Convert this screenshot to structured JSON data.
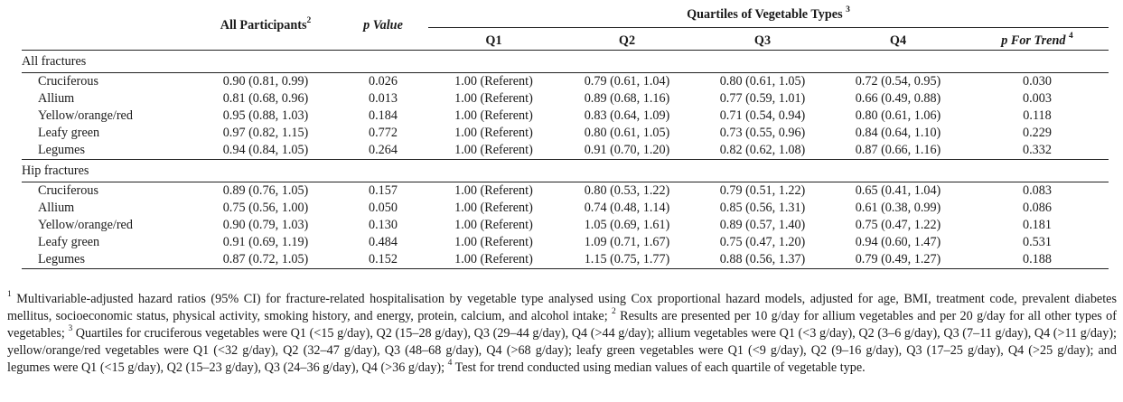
{
  "headers": {
    "all_participants": "All Participants",
    "all_participants_sup": "2",
    "p_value": "p Value",
    "quartiles": "Quartiles of Vegetable Types",
    "quartiles_sup": "3",
    "q1": "Q1",
    "q2": "Q2",
    "q3": "Q3",
    "q4": "Q4",
    "p_for_trend": "p For Trend",
    "p_for_trend_sup": "4"
  },
  "groups": [
    {
      "label": "All fractures",
      "rows": [
        {
          "name": "Cruciferous",
          "all": "0.90 (0.81, 0.99)",
          "p": "0.026",
          "q1": "1.00 (Referent)",
          "q2": "0.79 (0.61, 1.04)",
          "q3": "0.80 (0.61, 1.05)",
          "q4": "0.72 (0.54, 0.95)",
          "trend": "0.030"
        },
        {
          "name": "Allium",
          "all": "0.81 (0.68, 0.96)",
          "p": "0.013",
          "q1": "1.00 (Referent)",
          "q2": "0.89 (0.68, 1.16)",
          "q3": "0.77 (0.59, 1.01)",
          "q4": "0.66 (0.49, 0.88)",
          "trend": "0.003"
        },
        {
          "name": "Yellow/orange/red",
          "all": "0.95 (0.88, 1.03)",
          "p": "0.184",
          "q1": "1.00 (Referent)",
          "q2": "0.83 (0.64, 1.09)",
          "q3": "0.71 (0.54, 0.94)",
          "q4": "0.80 (0.61, 1.06)",
          "trend": "0.118"
        },
        {
          "name": "Leafy green",
          "all": "0.97 (0.82, 1.15)",
          "p": "0.772",
          "q1": "1.00 (Referent)",
          "q2": "0.80 (0.61, 1.05)",
          "q3": "0.73 (0.55, 0.96)",
          "q4": "0.84 (0.64, 1.10)",
          "trend": "0.229"
        },
        {
          "name": "Legumes",
          "all": "0.94 (0.84, 1.05)",
          "p": "0.264",
          "q1": "1.00 (Referent)",
          "q2": "0.91 (0.70, 1.20)",
          "q3": "0.82 (0.62, 1.08)",
          "q4": "0.87 (0.66, 1.16)",
          "trend": "0.332"
        }
      ]
    },
    {
      "label": "Hip fractures",
      "rows": [
        {
          "name": "Cruciferous",
          "all": "0.89 (0.76, 1.05)",
          "p": "0.157",
          "q1": "1.00 (Referent)",
          "q2": "0.80 (0.53, 1.22)",
          "q3": "0.79 (0.51, 1.22)",
          "q4": "0.65 (0.41, 1.04)",
          "trend": "0.083"
        },
        {
          "name": "Allium",
          "all": "0.75 (0.56, 1.00)",
          "p": "0.050",
          "q1": "1.00 (Referent)",
          "q2": "0.74 (0.48, 1.14)",
          "q3": "0.85 (0.56, 1.31)",
          "q4": "0.61 (0.38, 0.99)",
          "trend": "0.086"
        },
        {
          "name": "Yellow/orange/red",
          "all": "0.90 (0.79, 1.03)",
          "p": "0.130",
          "q1": "1.00 (Referent)",
          "q2": "1.05 (0.69, 1.61)",
          "q3": "0.89 (0.57, 1.40)",
          "q4": "0.75 (0.47, 1.22)",
          "trend": "0.181"
        },
        {
          "name": "Leafy green",
          "all": "0.91 (0.69, 1.19)",
          "p": "0.484",
          "q1": "1.00 (Referent)",
          "q2": "1.09 (0.71, 1.67)",
          "q3": "0.75 (0.47, 1.20)",
          "q4": "0.94 (0.60, 1.47)",
          "trend": "0.531"
        },
        {
          "name": "Legumes",
          "all": "0.87 (0.72, 1.05)",
          "p": "0.152",
          "q1": "1.00 (Referent)",
          "q2": "1.15 (0.75, 1.77)",
          "q3": "0.88 (0.56, 1.37)",
          "q4": "0.79 (0.49, 1.27)",
          "trend": "0.188"
        }
      ]
    }
  ],
  "footnote": {
    "sup1": "1",
    "text1": " Multivariable-adjusted hazard ratios (95% CI) for fracture-related hospitalisation by vegetable type analysed using Cox proportional hazard models, adjusted for age, BMI, treatment code, prevalent diabetes mellitus, socioeconomic status, physical activity, smoking history, and energy, protein, calcium, and alcohol intake; ",
    "sup2": "2",
    "text2": " Results are presented per 10 g/day for allium vegetables and per 20 g/day for all other types of vegetables; ",
    "sup3": "3",
    "text3": " Quartiles for cruciferous vegetables were Q1 (<15 g/day), Q2 (15–28 g/day), Q3 (29–44 g/day), Q4 (>44 g/day); allium vegetables were Q1 (<3 g/day), Q2 (3–6 g/day), Q3 (7–11 g/day), Q4 (>11 g/day); yellow/orange/red vegetables were Q1 (<32 g/day), Q2 (32–47 g/day), Q3 (48–68 g/day), Q4 (>68 g/day); leafy green vegetables were Q1 (<9 g/day), Q2 (9–16 g/day), Q3 (17–25 g/day), Q4 (>25 g/day); and legumes were Q1 (<15 g/day), Q2 (15–23 g/day), Q3 (24–36 g/day), Q4 (>36 g/day); ",
    "sup4": "4",
    "text4": " Test for trend conducted using median values of each quartile of vegetable type."
  }
}
